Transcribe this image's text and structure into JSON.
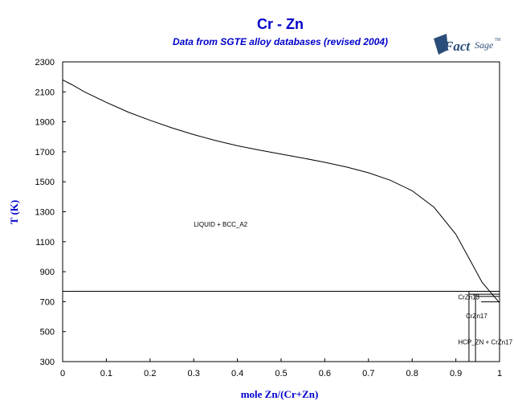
{
  "chart_data": {
    "type": "line",
    "title": "Cr - Zn",
    "subtitle": "Data from SGTE alloy databases (revised 2004)",
    "xlabel": "mole Zn/(Cr+Zn)",
    "ylabel": "T (K)",
    "xlim": [
      0,
      1
    ],
    "ylim": [
      300,
      2300
    ],
    "x_ticks": [
      "0",
      "0.1",
      "0.2",
      "0.3",
      "0.4",
      "0.5",
      "0.6",
      "0.7",
      "0.8",
      "0.9",
      "1"
    ],
    "y_ticks": [
      "300",
      "500",
      "700",
      "900",
      "1100",
      "1300",
      "1500",
      "1700",
      "1900",
      "2100",
      "2300"
    ],
    "grid": false,
    "logo": {
      "text_main": "Fact",
      "text_sub": "Sage",
      "tm": "TM"
    },
    "colors": {
      "title": "#0000cc",
      "lines": "#000000",
      "logo": "#2b4d7a"
    },
    "series": [
      {
        "points": [
          [
            0,
            2180
          ],
          [
            0.02,
            2150
          ],
          [
            0.05,
            2100
          ],
          [
            0.1,
            2030
          ],
          [
            0.15,
            1965
          ],
          [
            0.2,
            1910
          ],
          [
            0.25,
            1860
          ],
          [
            0.3,
            1815
          ],
          [
            0.35,
            1775
          ],
          [
            0.4,
            1740
          ],
          [
            0.45,
            1712
          ],
          [
            0.5,
            1685
          ],
          [
            0.55,
            1658
          ],
          [
            0.6,
            1630
          ],
          [
            0.65,
            1598
          ],
          [
            0.7,
            1560
          ],
          [
            0.75,
            1510
          ],
          [
            0.8,
            1440
          ],
          [
            0.85,
            1330
          ],
          [
            0.9,
            1150
          ],
          [
            0.93,
            990
          ],
          [
            0.96,
            830
          ],
          [
            0.98,
            760
          ],
          [
            1.0,
            693
          ]
        ]
      }
    ],
    "lines": [
      {
        "x": [
          0,
          1
        ],
        "y": [
          769,
          769
        ]
      },
      {
        "x": [
          0.93,
          1
        ],
        "y": [
          750,
          750
        ]
      },
      {
        "x": [
          0.945,
          1
        ],
        "y": [
          735,
          735
        ]
      },
      {
        "x": [
          0.93,
          0.93
        ],
        "y": [
          300,
          769
        ]
      },
      {
        "x": [
          0.945,
          0.945
        ],
        "y": [
          300,
          750
        ]
      },
      {
        "x": [
          0.958,
          1
        ],
        "y": [
          699,
          699
        ]
      },
      {
        "x": [
          1,
          1
        ],
        "y": [
          300,
          900
        ]
      }
    ],
    "annotations": [
      {
        "text": "LIQUID + BCC_A2",
        "x": 0.3,
        "y": 1200
      },
      {
        "text": "CrZn13",
        "x": 0.905,
        "y": 715
      },
      {
        "text": "CrZn17",
        "x": 0.923,
        "y": 590
      },
      {
        "text": "HCP_ZN + CrZn17",
        "x": 0.905,
        "y": 415
      }
    ]
  }
}
